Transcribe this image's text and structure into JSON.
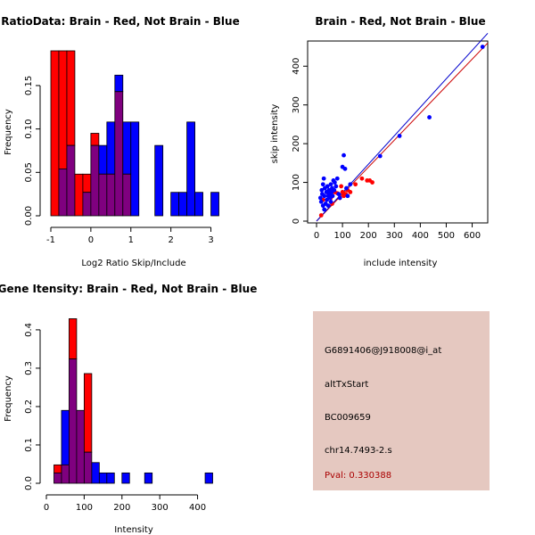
{
  "colors": {
    "red": "#ff0000",
    "blue": "#0000ff",
    "overlap": "#7f007f",
    "red_line": "#cc0000",
    "blue_line": "#0000cc",
    "panel_bg": "#e5c8c0",
    "pval": "#aa0000"
  },
  "chart_data": [
    {
      "type": "bar",
      "title": "RatioData: Brain - Red, Not Brain - Blue",
      "xlabel": "Log2 Ratio Skip/Include",
      "ylabel": "Frequency",
      "xlim": [
        -1,
        3.3
      ],
      "ylim": [
        0,
        0.19
      ],
      "xticks": [
        -1,
        0,
        1,
        2,
        3
      ],
      "yticks": [
        0.0,
        0.05,
        0.1,
        0.15
      ],
      "ytick_labels": [
        "0.00",
        "0.05",
        "0.10",
        "0.15"
      ],
      "bin_width": 0.2,
      "series": [
        {
          "name": "Brain",
          "color": "red",
          "bins": [
            {
              "x0": -1.0,
              "x1": -0.8,
              "value": 0.19
            },
            {
              "x0": -0.8,
              "x1": -0.6,
              "value": 0.19
            },
            {
              "x0": -0.6,
              "x1": -0.4,
              "value": 0.19
            },
            {
              "x0": -0.4,
              "x1": -0.2,
              "value": 0.048
            },
            {
              "x0": -0.2,
              "x1": 0.0,
              "value": 0.048
            },
            {
              "x0": 0.0,
              "x1": 0.2,
              "value": 0.095
            },
            {
              "x0": 0.2,
              "x1": 0.4,
              "value": 0.048
            },
            {
              "x0": 0.4,
              "x1": 0.6,
              "value": 0.048
            },
            {
              "x0": 0.6,
              "x1": 0.8,
              "value": 0.143
            },
            {
              "x0": 0.8,
              "x1": 1.0,
              "value": 0.048
            }
          ]
        },
        {
          "name": "Not Brain",
          "color": "blue",
          "bins": [
            {
              "x0": -0.8,
              "x1": -0.6,
              "value": 0.054
            },
            {
              "x0": -0.6,
              "x1": -0.4,
              "value": 0.081
            },
            {
              "x0": -0.2,
              "x1": 0.0,
              "value": 0.027
            },
            {
              "x0": 0.0,
              "x1": 0.2,
              "value": 0.081
            },
            {
              "x0": 0.2,
              "x1": 0.4,
              "value": 0.081
            },
            {
              "x0": 0.4,
              "x1": 0.6,
              "value": 0.108
            },
            {
              "x0": 0.6,
              "x1": 0.8,
              "value": 0.162
            },
            {
              "x0": 0.8,
              "x1": 1.0,
              "value": 0.108
            },
            {
              "x0": 1.0,
              "x1": 1.2,
              "value": 0.108
            },
            {
              "x0": 1.6,
              "x1": 1.8,
              "value": 0.081
            },
            {
              "x0": 2.0,
              "x1": 2.2,
              "value": 0.027
            },
            {
              "x0": 2.2,
              "x1": 2.4,
              "value": 0.027
            },
            {
              "x0": 2.4,
              "x1": 2.6,
              "value": 0.108
            },
            {
              "x0": 2.6,
              "x1": 2.8,
              "value": 0.027
            },
            {
              "x0": 3.0,
              "x1": 3.2,
              "value": 0.027
            }
          ]
        }
      ]
    },
    {
      "type": "scatter",
      "title": "Brain - Red, Not Brain - Blue",
      "xlabel": "include intensity",
      "ylabel": "skip intensity",
      "xlim": [
        0,
        660
      ],
      "ylim": [
        0,
        465
      ],
      "xticks": [
        0,
        100,
        200,
        300,
        400,
        500,
        600
      ],
      "yticks": [
        0,
        100,
        200,
        300,
        400
      ],
      "series": [
        {
          "name": "Brain",
          "color": "red",
          "fit_line": [
            [
              0,
              0
            ],
            [
              660,
              460
            ]
          ],
          "points": [
            [
              18,
              15
            ],
            [
              25,
              55
            ],
            [
              40,
              75
            ],
            [
              48,
              70
            ],
            [
              55,
              60
            ],
            [
              65,
              80
            ],
            [
              70,
              75
            ],
            [
              80,
              72
            ],
            [
              95,
              90
            ],
            [
              100,
              75
            ],
            [
              105,
              65
            ],
            [
              112,
              70
            ],
            [
              120,
              80
            ],
            [
              130,
              75
            ],
            [
              150,
              95
            ],
            [
              175,
              110
            ],
            [
              195,
              105
            ],
            [
              205,
              105
            ],
            [
              215,
              100
            ],
            [
              90,
              60
            ],
            [
              60,
              45
            ]
          ]
        },
        {
          "name": "Not Brain",
          "color": "blue",
          "fit_line": [
            [
              0,
              0
            ],
            [
              660,
              485
            ]
          ],
          "points": [
            [
              15,
              60
            ],
            [
              20,
              80
            ],
            [
              22,
              70
            ],
            [
              25,
              95
            ],
            [
              28,
              110
            ],
            [
              30,
              65
            ],
            [
              32,
              85
            ],
            [
              35,
              45
            ],
            [
              38,
              75
            ],
            [
              40,
              55
            ],
            [
              42,
              90
            ],
            [
              45,
              65
            ],
            [
              48,
              80
            ],
            [
              50,
              70
            ],
            [
              52,
              60
            ],
            [
              55,
              95
            ],
            [
              58,
              75
            ],
            [
              60,
              85
            ],
            [
              62,
              65
            ],
            [
              65,
              105
            ],
            [
              68,
              80
            ],
            [
              70,
              100
            ],
            [
              75,
              90
            ],
            [
              80,
              110
            ],
            [
              85,
              70
            ],
            [
              90,
              60
            ],
            [
              100,
              140
            ],
            [
              105,
              170
            ],
            [
              110,
              135
            ],
            [
              115,
              85
            ],
            [
              120,
              65
            ],
            [
              130,
              95
            ],
            [
              245,
              168
            ],
            [
              320,
              220
            ],
            [
              435,
              268
            ],
            [
              640,
              450
            ],
            [
              25,
              40
            ],
            [
              18,
              50
            ],
            [
              30,
              30
            ],
            [
              45,
              40
            ],
            [
              55,
              50
            ]
          ]
        }
      ]
    },
    {
      "type": "bar",
      "title": "Gene Itensity: Brain - Red, Not Brain - Blue",
      "xlabel": "Intensity",
      "ylabel": "Frequency",
      "xlim": [
        0,
        460
      ],
      "ylim": [
        0,
        0.43
      ],
      "xticks": [
        0,
        100,
        200,
        300,
        400
      ],
      "yticks": [
        0.0,
        0.1,
        0.2,
        0.3,
        0.4
      ],
      "ytick_labels": [
        "0.0",
        "0.1",
        "0.2",
        "0.3",
        "0.4"
      ],
      "bin_width": 20,
      "series": [
        {
          "name": "Brain",
          "color": "red",
          "bins": [
            {
              "x0": 20,
              "x1": 40,
              "value": 0.048
            },
            {
              "x0": 40,
              "x1": 60,
              "value": 0.048
            },
            {
              "x0": 60,
              "x1": 80,
              "value": 0.429
            },
            {
              "x0": 80,
              "x1": 100,
              "value": 0.19
            },
            {
              "x0": 100,
              "x1": 120,
              "value": 0.286
            }
          ]
        },
        {
          "name": "Not Brain",
          "color": "blue",
          "bins": [
            {
              "x0": 20,
              "x1": 40,
              "value": 0.027
            },
            {
              "x0": 40,
              "x1": 60,
              "value": 0.19
            },
            {
              "x0": 60,
              "x1": 80,
              "value": 0.324
            },
            {
              "x0": 80,
              "x1": 100,
              "value": 0.19
            },
            {
              "x0": 100,
              "x1": 120,
              "value": 0.081
            },
            {
              "x0": 120,
              "x1": 140,
              "value": 0.054
            },
            {
              "x0": 140,
              "x1": 160,
              "value": 0.027
            },
            {
              "x0": 160,
              "x1": 180,
              "value": 0.027
            },
            {
              "x0": 200,
              "x1": 220,
              "value": 0.027
            },
            {
              "x0": 260,
              "x1": 280,
              "value": 0.027
            },
            {
              "x0": 420,
              "x1": 440,
              "value": 0.027
            }
          ]
        }
      ]
    }
  ],
  "info_panel": {
    "probe_id": "G6891406@J918008@i_at",
    "event_type": "altTxStart",
    "accession": "BC009659",
    "location": "chr14.7493-2.s",
    "pval": "Pval: 0.330388"
  }
}
